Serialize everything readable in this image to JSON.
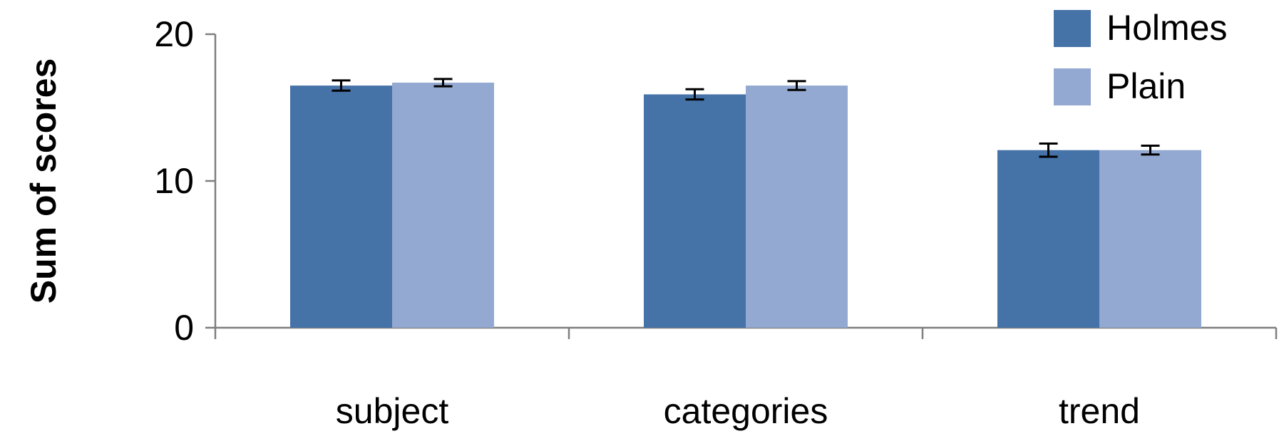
{
  "chart_data": {
    "type": "bar",
    "title": "",
    "xlabel": "",
    "ylabel": "Sum of scores",
    "ylim": [
      0,
      20
    ],
    "yticks": [
      0,
      10,
      20
    ],
    "categories": [
      "subject",
      "categories",
      "trend"
    ],
    "series": [
      {
        "name": "Holmes",
        "color": "#4572a7",
        "values": [
          16.5,
          15.9,
          12.1
        ],
        "errors": [
          0.35,
          0.35,
          0.45
        ]
      },
      {
        "name": "Plain",
        "color": "#93a9d1",
        "values": [
          16.7,
          16.5,
          12.1
        ],
        "errors": [
          0.25,
          0.3,
          0.3
        ]
      }
    ],
    "grid": false,
    "legend_position": "top-right",
    "error_bars": true
  }
}
